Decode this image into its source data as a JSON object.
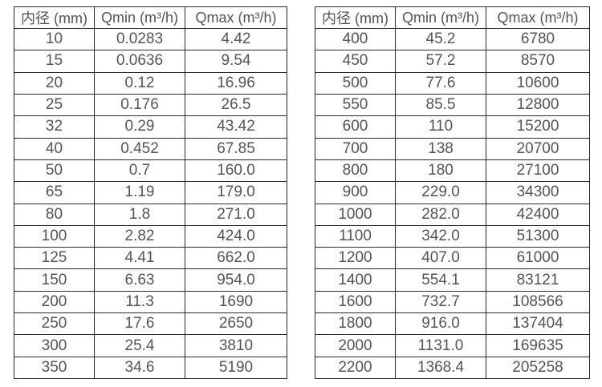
{
  "colors": {
    "background": "#ffffff",
    "border": "#2b2b2b",
    "text": "#545456"
  },
  "tables": [
    {
      "id": "small-diameter",
      "headers": [
        "内径 (mm)",
        "Qmin (m³/h)",
        "Qmax (m³/h)"
      ],
      "rows": [
        [
          "10",
          "0.0283",
          "4.42"
        ],
        [
          "15",
          "0.0636",
          "9.54"
        ],
        [
          "20",
          "0.12",
          "16.96"
        ],
        [
          "25",
          "0.176",
          "26.5"
        ],
        [
          "32",
          "0.29",
          "43.42"
        ],
        [
          "40",
          "0.452",
          "67.85"
        ],
        [
          "50",
          "0.7",
          "160.0"
        ],
        [
          "65",
          "1.19",
          "179.0"
        ],
        [
          "80",
          "1.8",
          "271.0"
        ],
        [
          "100",
          "2.82",
          "424.0"
        ],
        [
          "125",
          "4.41",
          "662.0"
        ],
        [
          "150",
          "6.63",
          "954.0"
        ],
        [
          "200",
          "11.3",
          "1690"
        ],
        [
          "250",
          "17.6",
          "2650"
        ],
        [
          "300",
          "25.4",
          "3810"
        ],
        [
          "350",
          "34.6",
          "5190"
        ]
      ]
    },
    {
      "id": "large-diameter",
      "headers": [
        "内径 (mm)",
        "Qmin (m³/h)",
        "Qmax (m³/h)"
      ],
      "rows": [
        [
          "400",
          "45.2",
          "6780"
        ],
        [
          "450",
          "57.2",
          "8570"
        ],
        [
          "500",
          "77.6",
          "10600"
        ],
        [
          "550",
          "85.5",
          "12800"
        ],
        [
          "600",
          "110",
          "15200"
        ],
        [
          "700",
          "138",
          "20700"
        ],
        [
          "800",
          "180",
          "27100"
        ],
        [
          "900",
          "229.0",
          "34300"
        ],
        [
          "1000",
          "282.0",
          "42400"
        ],
        [
          "1100",
          "342.0",
          "51300"
        ],
        [
          "1200",
          "407.0",
          "61000"
        ],
        [
          "1400",
          "554.1",
          "83121"
        ],
        [
          "1600",
          "732.7",
          "108566"
        ],
        [
          "1800",
          "916.0",
          "137404"
        ],
        [
          "2000",
          "1131.0",
          "169635"
        ],
        [
          "2200",
          "1368.4",
          "205258"
        ]
      ]
    }
  ],
  "chart_data": [
    {
      "type": "table",
      "title": "",
      "columns": [
        "内径 (mm)",
        "Qmin (m³/h)",
        "Qmax (m³/h)"
      ],
      "rows": [
        [
          10,
          0.0283,
          4.42
        ],
        [
          15,
          0.0636,
          9.54
        ],
        [
          20,
          0.12,
          16.96
        ],
        [
          25,
          0.176,
          26.5
        ],
        [
          32,
          0.29,
          43.42
        ],
        [
          40,
          0.452,
          67.85
        ],
        [
          50,
          0.7,
          160.0
        ],
        [
          65,
          1.19,
          179.0
        ],
        [
          80,
          1.8,
          271.0
        ],
        [
          100,
          2.82,
          424.0
        ],
        [
          125,
          4.41,
          662.0
        ],
        [
          150,
          6.63,
          954.0
        ],
        [
          200,
          11.3,
          1690
        ],
        [
          250,
          17.6,
          2650
        ],
        [
          300,
          25.4,
          3810
        ],
        [
          350,
          34.6,
          5190
        ]
      ]
    },
    {
      "type": "table",
      "title": "",
      "columns": [
        "内径 (mm)",
        "Qmin (m³/h)",
        "Qmax (m³/h)"
      ],
      "rows": [
        [
          400,
          45.2,
          6780
        ],
        [
          450,
          57.2,
          8570
        ],
        [
          500,
          77.6,
          10600
        ],
        [
          550,
          85.5,
          12800
        ],
        [
          600,
          110,
          15200
        ],
        [
          700,
          138,
          20700
        ],
        [
          800,
          180,
          27100
        ],
        [
          900,
          229.0,
          34300
        ],
        [
          1000,
          282.0,
          42400
        ],
        [
          1100,
          342.0,
          51300
        ],
        [
          1200,
          407.0,
          61000
        ],
        [
          1400,
          554.1,
          83121
        ],
        [
          1600,
          732.7,
          108566
        ],
        [
          1800,
          916.0,
          137404
        ],
        [
          2000,
          1131.0,
          169635
        ],
        [
          2200,
          1368.4,
          205258
        ]
      ]
    }
  ]
}
